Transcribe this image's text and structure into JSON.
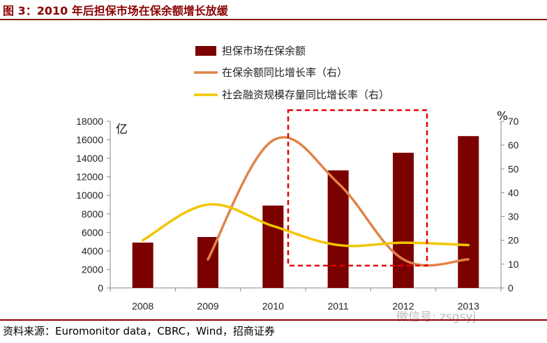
{
  "title": "图 3：2010 年后担保市场在保余额增长放缓",
  "source": "资料来源：Euromonitor data，CBRC，Wind，招商证券",
  "watermark": "微信号: zsgsyj",
  "chart_data": {
    "type": "bar",
    "categories": [
      "2008",
      "2009",
      "2010",
      "2011",
      "2012",
      "2013"
    ],
    "left_axis": {
      "unit": "亿",
      "ylim": [
        0,
        18000
      ],
      "ticks": [
        0,
        2000,
        4000,
        6000,
        8000,
        10000,
        12000,
        14000,
        16000,
        18000
      ]
    },
    "right_axis": {
      "unit": "%",
      "ylim": [
        0,
        70
      ],
      "ticks": [
        0,
        10,
        20,
        30,
        40,
        50,
        60,
        70
      ]
    },
    "series": [
      {
        "name": "担保市场在保余额",
        "type": "bar",
        "axis": "left",
        "color": "#7b0000",
        "values": [
          4900,
          5500,
          8900,
          12700,
          14600,
          16400
        ]
      },
      {
        "name": "在保余额同比增长率（右）",
        "type": "line",
        "axis": "right",
        "color": "#e0834a",
        "values": [
          null,
          12,
          62,
          44,
          12,
          12
        ]
      },
      {
        "name": "社会融资规模存量同比增长率（右）",
        "type": "line",
        "axis": "right",
        "color": "#f2c500",
        "values": [
          20,
          35,
          26,
          18,
          19,
          18
        ]
      }
    ],
    "highlight": {
      "from": "2011",
      "to": "2012",
      "color": "#e00000",
      "style": "dashed"
    },
    "legend_position": "top",
    "grid": false
  }
}
